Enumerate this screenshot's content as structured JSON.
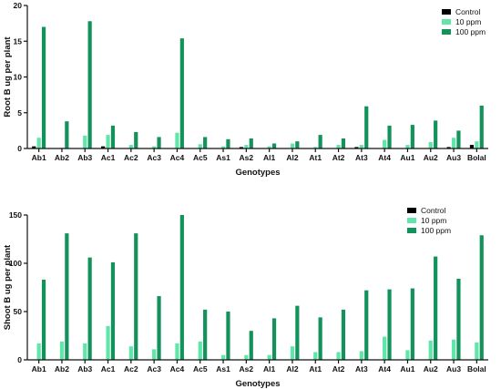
{
  "colors": {
    "control": "#000000",
    "ppm10": "#5fe6a8",
    "ppm100": "#13925c",
    "axis": "#111111"
  },
  "chart_data": [
    {
      "type": "bar",
      "title": "",
      "xlabel": "Genotypes",
      "ylabel": "Root B ug per plant",
      "ylim": [
        0,
        20
      ],
      "yticks": [
        0,
        5,
        10,
        15,
        20
      ],
      "legend_position": "top-right",
      "grid": false,
      "categories": [
        "Ab1",
        "Ab2",
        "Ab3",
        "Ac1",
        "Ac2",
        "Ac3",
        "Ac4",
        "Ac5",
        "As1",
        "As2",
        "Al1",
        "Al2",
        "At1",
        "At2",
        "At3",
        "At4",
        "Au1",
        "Au2",
        "Au3",
        "Bolal"
      ],
      "series": [
        {
          "name": "Control",
          "color_key": "control",
          "values": [
            0.3,
            0.05,
            0.05,
            0.3,
            0.05,
            0.05,
            0.05,
            0.05,
            0.05,
            0.2,
            0.05,
            0.05,
            0.05,
            0.05,
            0.2,
            0.05,
            0.05,
            0.05,
            0.2,
            0.5
          ]
        },
        {
          "name": "10 ppm",
          "color_key": "ppm10",
          "values": [
            1.5,
            0.1,
            1.8,
            1.9,
            0.5,
            0.3,
            2.2,
            0.6,
            0.3,
            0.5,
            0.3,
            0.7,
            0.2,
            0.5,
            0.5,
            1.2,
            0.5,
            0.9,
            1.5,
            1.0
          ]
        },
        {
          "name": "100 ppm",
          "color_key": "ppm100",
          "values": [
            17.0,
            3.8,
            17.8,
            3.2,
            2.3,
            1.6,
            15.4,
            1.6,
            1.3,
            1.4,
            0.7,
            1.0,
            1.9,
            1.4,
            5.9,
            3.2,
            3.3,
            3.9,
            2.5,
            6.0
          ]
        }
      ]
    },
    {
      "type": "bar",
      "title": "",
      "xlabel": "Genotypes",
      "ylabel": "Shoot B ug per plant",
      "ylim": [
        0,
        150
      ],
      "yticks": [
        0,
        50,
        100,
        150
      ],
      "legend_position": "top-right",
      "grid": false,
      "categories": [
        "Ab1",
        "Ab2",
        "Ab3",
        "Ac1",
        "Ac2",
        "Ac3",
        "Ac4",
        "Ac5",
        "As1",
        "As2",
        "Al1",
        "Al2",
        "At1",
        "At2",
        "At3",
        "At4",
        "Au1",
        "Au2",
        "Au3",
        "Bolal"
      ],
      "series": [
        {
          "name": "Control",
          "color_key": "control",
          "values": [
            0,
            0,
            0,
            0,
            0,
            0,
            0,
            0,
            0,
            0,
            0,
            0,
            0,
            0,
            0,
            0,
            0,
            0,
            0,
            0
          ]
        },
        {
          "name": "10 ppm",
          "color_key": "ppm10",
          "values": [
            17,
            19,
            17,
            35,
            14,
            11,
            17,
            19,
            5,
            5,
            5,
            14,
            8,
            8,
            9,
            24,
            10,
            20,
            21,
            18
          ]
        },
        {
          "name": "100 ppm",
          "color_key": "ppm100",
          "values": [
            83,
            131,
            106,
            101,
            131,
            66,
            150,
            52,
            50,
            30,
            43,
            56,
            44,
            52,
            72,
            73,
            74,
            107,
            84,
            129
          ]
        }
      ]
    }
  ]
}
